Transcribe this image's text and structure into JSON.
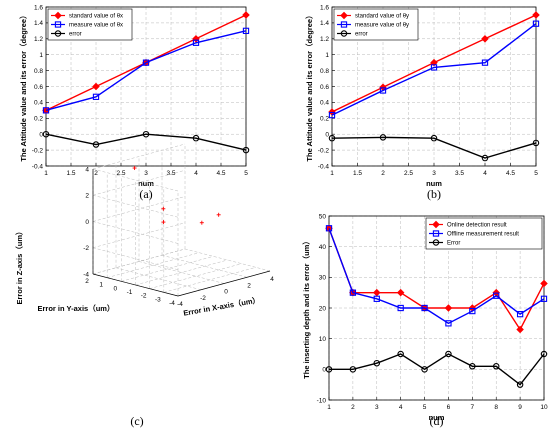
{
  "chart_data": [
    {
      "id": "a",
      "type": "line",
      "caption": "(a)",
      "xlabel": "num",
      "ylabel": "The Attitude value and its error（degree）",
      "xlim": [
        1,
        5
      ],
      "ylim": [
        -0.4,
        1.6
      ],
      "xticks": [
        "1",
        "1.5",
        "2",
        "2.5",
        "3",
        "3.5",
        "4",
        "4.5",
        "5"
      ],
      "yticks": [
        "-0.4",
        "-0.2",
        "0",
        "0.2",
        "0.4",
        "0.6",
        "0.8",
        "1",
        "1.2",
        "1.4",
        "1.6"
      ],
      "grid": true,
      "legend_position": "top-left",
      "x": [
        1,
        2,
        3,
        4,
        5
      ],
      "series": [
        {
          "name": "standard value of θx",
          "values": [
            0.3,
            0.6,
            0.9,
            1.2,
            1.5
          ],
          "color": "#ff0000",
          "marker": "diamond"
        },
        {
          "name": "measure value of θx",
          "values": [
            0.3,
            0.47,
            0.9,
            1.15,
            1.3
          ],
          "color": "#0000ff",
          "marker": "square"
        },
        {
          "name": "error",
          "values": [
            0.0,
            -0.13,
            0.0,
            -0.05,
            -0.2
          ],
          "color": "#000000",
          "marker": "circle"
        }
      ]
    },
    {
      "id": "b",
      "type": "line",
      "caption": "(b)",
      "xlabel": "num",
      "ylabel": "The Attitude value and its error（degree）",
      "xlim": [
        1,
        5
      ],
      "ylim": [
        -0.4,
        1.6
      ],
      "xticks": [
        "1",
        "1.5",
        "2",
        "2.5",
        "3",
        "3.5",
        "4",
        "4.5",
        "5"
      ],
      "yticks": [
        "-0.4",
        "-0.2",
        "0",
        "0.2",
        "0.4",
        "0.6",
        "0.8",
        "1",
        "1.2",
        "1.4",
        "1.6"
      ],
      "grid": true,
      "legend_position": "top-left",
      "x": [
        1,
        2,
        3,
        4,
        5
      ],
      "series": [
        {
          "name": "standard value of θy",
          "values": [
            0.28,
            0.59,
            0.9,
            1.2,
            1.5
          ],
          "color": "#ff0000",
          "marker": "diamond"
        },
        {
          "name": "measure value of θy",
          "values": [
            0.24,
            0.55,
            0.84,
            0.9,
            1.39
          ],
          "color": "#0000ff",
          "marker": "square"
        },
        {
          "name": "error",
          "values": [
            -0.05,
            -0.04,
            -0.05,
            -0.3,
            -0.11
          ],
          "color": "#000000",
          "marker": "circle"
        }
      ]
    },
    {
      "id": "c",
      "type": "scatter",
      "caption": "(c)",
      "xlabel": "Error in X-axis（um）",
      "ylabel": "Error in Y-axis（um）",
      "zlabel": "Error in Z-axis（um）",
      "xlim": [
        -4,
        4
      ],
      "ylim": [
        -4,
        2
      ],
      "zlim": [
        -4,
        4
      ],
      "xticks": [
        "-4",
        "-2",
        "0",
        "2",
        "4"
      ],
      "yticks": [
        "-4",
        "-3",
        "-2",
        "-1",
        "0",
        "1",
        "2"
      ],
      "zticks": [
        "-4",
        "-2",
        "0",
        "2",
        "4"
      ],
      "grid": true,
      "color": "#ff0000",
      "marker": "plus",
      "points": [
        {
          "x": -1,
          "y": 1.5,
          "z": 3.5
        },
        {
          "x": 2,
          "y": -2,
          "z": 0.2
        },
        {
          "x": 0.4,
          "y": 0.6,
          "z": -0.7
        },
        {
          "x": 1.5,
          "y": 1.5,
          "z": -0.2
        },
        {
          "x": 3,
          "y": 0,
          "z": -1.2
        }
      ]
    },
    {
      "id": "d",
      "type": "line",
      "caption": "(d)",
      "xlabel": "num",
      "ylabel": "The inserting depth and its error（um）",
      "xlim": [
        1,
        10
      ],
      "ylim": [
        -10,
        50
      ],
      "xticks": [
        "1",
        "2",
        "3",
        "4",
        "5",
        "6",
        "7",
        "8",
        "9",
        "10"
      ],
      "yticks": [
        "-10",
        "0",
        "10",
        "20",
        "30",
        "40",
        "50"
      ],
      "grid": true,
      "legend_position": "top-right",
      "x": [
        1,
        2,
        3,
        4,
        5,
        6,
        7,
        8,
        9,
        10
      ],
      "series": [
        {
          "name": "Online detection result",
          "values": [
            46,
            25,
            25,
            25,
            20,
            20,
            20,
            25,
            13,
            28
          ],
          "color": "#ff0000",
          "marker": "diamond"
        },
        {
          "name": "Offline measurement result",
          "values": [
            46,
            25,
            23,
            20,
            20,
            15,
            19,
            24,
            18,
            23
          ],
          "color": "#0000ff",
          "marker": "square"
        },
        {
          "name": "Error",
          "values": [
            0,
            0,
            2,
            5,
            0,
            5,
            1,
            1,
            -5,
            5
          ],
          "color": "#000000",
          "marker": "circle"
        }
      ]
    }
  ]
}
